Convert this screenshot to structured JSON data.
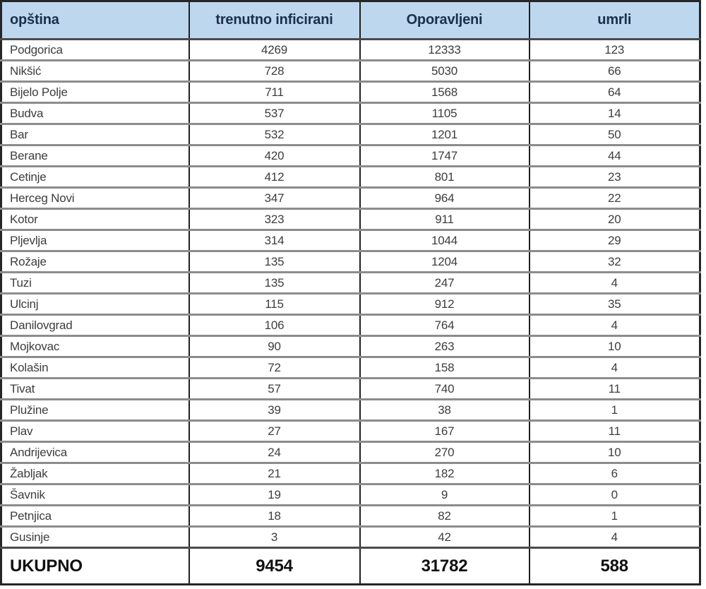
{
  "table": {
    "columns": [
      "opština",
      "trenutno inficirani",
      "Oporavljeni",
      "umrli"
    ],
    "rows": [
      [
        "Podgorica",
        "4269",
        "12333",
        "123"
      ],
      [
        "Nikšić",
        "728",
        "5030",
        "66"
      ],
      [
        "Bijelo Polje",
        "711",
        "1568",
        "64"
      ],
      [
        "Budva",
        "537",
        "1105",
        "14"
      ],
      [
        "Bar",
        "532",
        "1201",
        "50"
      ],
      [
        "Berane",
        "420",
        "1747",
        "44"
      ],
      [
        "Cetinje",
        "412",
        "801",
        "23"
      ],
      [
        "Herceg Novi",
        "347",
        "964",
        "22"
      ],
      [
        "Kotor",
        "323",
        "911",
        "20"
      ],
      [
        "Pljevlja",
        "314",
        "1044",
        "29"
      ],
      [
        "Rožaje",
        "135",
        "1204",
        "32"
      ],
      [
        "Tuzi",
        "135",
        "247",
        "4"
      ],
      [
        "Ulcinj",
        "115",
        "912",
        "35"
      ],
      [
        "Danilovgrad",
        "106",
        "764",
        "4"
      ],
      [
        "Mojkovac",
        "90",
        "263",
        "10"
      ],
      [
        "Kolašin",
        "72",
        "158",
        "4"
      ],
      [
        "Tivat",
        "57",
        "740",
        "11"
      ],
      [
        "Plužine",
        "39",
        "38",
        "1"
      ],
      [
        "Plav",
        "27",
        "167",
        "11"
      ],
      [
        "Andrijevica",
        "24",
        "270",
        "10"
      ],
      [
        "Žabljak",
        "21",
        "182",
        "6"
      ],
      [
        "Šavnik",
        "19",
        "9",
        "0"
      ],
      [
        "Petnjica",
        "18",
        "82",
        "1"
      ],
      [
        "Gusinje",
        "3",
        "42",
        "4"
      ]
    ],
    "total": {
      "label": "UKUPNO",
      "infected": "9454",
      "recovered": "31782",
      "deaths": "588"
    }
  },
  "colors": {
    "header_bg": "#BDD7EE",
    "header_text": "#1B2F4B",
    "body_text": "#3D3D3D",
    "grid_gray": "#8C8C8C",
    "grid_dark": "#262626"
  },
  "chart_data": {
    "type": "table",
    "title": "",
    "columns": [
      "opština",
      "trenutno inficirani",
      "Oporavljeni",
      "umrli"
    ],
    "rows": [
      [
        "Podgorica",
        4269,
        12333,
        123
      ],
      [
        "Nikšić",
        728,
        5030,
        66
      ],
      [
        "Bijelo Polje",
        711,
        1568,
        64
      ],
      [
        "Budva",
        537,
        1105,
        14
      ],
      [
        "Bar",
        532,
        1201,
        50
      ],
      [
        "Berane",
        420,
        1747,
        44
      ],
      [
        "Cetinje",
        412,
        801,
        23
      ],
      [
        "Herceg Novi",
        347,
        964,
        22
      ],
      [
        "Kotor",
        323,
        911,
        20
      ],
      [
        "Pljevlja",
        314,
        1044,
        29
      ],
      [
        "Rožaje",
        135,
        1204,
        32
      ],
      [
        "Tuzi",
        135,
        247,
        4
      ],
      [
        "Ulcinj",
        115,
        912,
        35
      ],
      [
        "Danilovgrad",
        106,
        764,
        4
      ],
      [
        "Mojkovac",
        90,
        263,
        10
      ],
      [
        "Kolašin",
        72,
        158,
        4
      ],
      [
        "Tivat",
        57,
        740,
        11
      ],
      [
        "Plužine",
        39,
        38,
        1
      ],
      [
        "Plav",
        27,
        167,
        11
      ],
      [
        "Andrijevica",
        24,
        270,
        10
      ],
      [
        "Žabljak",
        21,
        182,
        6
      ],
      [
        "Šavnik",
        19,
        9,
        0
      ],
      [
        "Petnjica",
        18,
        82,
        1
      ],
      [
        "Gusinje",
        3,
        42,
        4
      ]
    ],
    "totals_row": [
      "UKUPNO",
      9454,
      31782,
      588
    ]
  }
}
